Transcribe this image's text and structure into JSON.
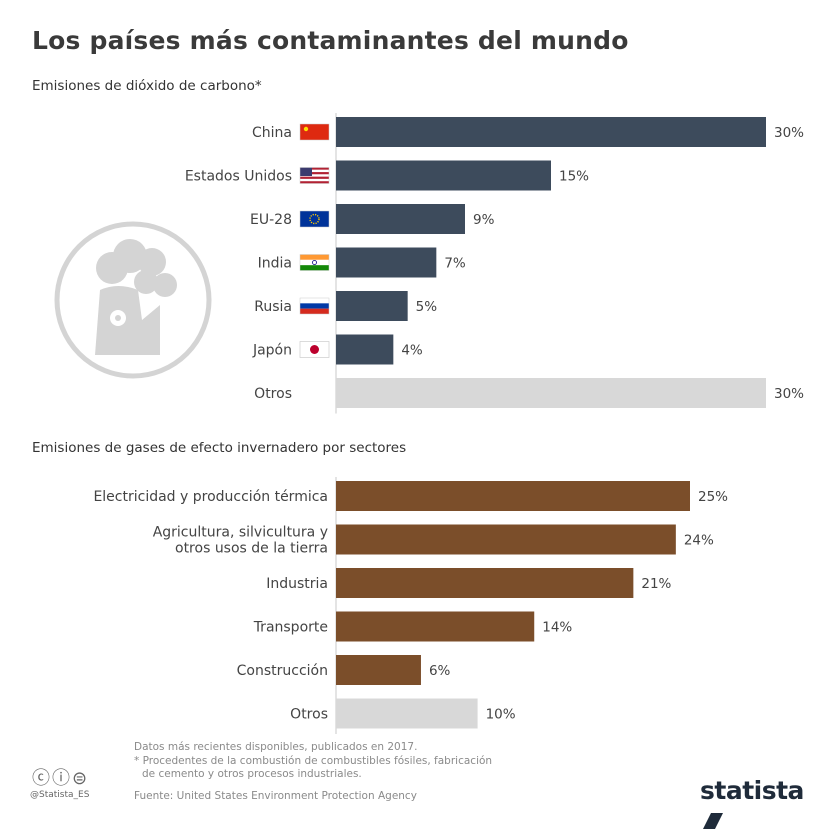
{
  "title": "Los países más contaminantes del mundo",
  "colors": {
    "co2_bar": "#3d4b5c",
    "sector_bar": "#7b4e2a",
    "other_bar": "#d8d8d8",
    "icon_gray": "#d4d4d4"
  },
  "chart_data": [
    {
      "type": "bar",
      "title": "Emisiones de dióxido de carbono*",
      "categories": [
        "China",
        "Estados Unidos",
        "EU-28",
        "India",
        "Rusia",
        "Japón",
        "Otros"
      ],
      "values": [
        30,
        15,
        9,
        7,
        5,
        4,
        30
      ],
      "value_labels": [
        "30%",
        "15%",
        "9%",
        "7%",
        "5%",
        "4%",
        "30%"
      ],
      "flags": [
        "china-flag-icon",
        "usa-flag-icon",
        "eu-flag-icon",
        "india-flag-icon",
        "russia-flag-icon",
        "japan-flag-icon",
        ""
      ],
      "unit": "%",
      "xlim": [
        0,
        30
      ]
    },
    {
      "type": "bar",
      "title": "Emisiones de gases de efecto invernadero por sectores",
      "categories": [
        "Electricidad y producción térmica",
        "Agricultura, silvicultura y otros usos de la tierra",
        "Industria",
        "Transporte",
        "Construcción",
        "Otros"
      ],
      "category_lines": [
        [
          "Electricidad y producción térmica"
        ],
        [
          "Agricultura, silvicultura y",
          "otros usos de la tierra"
        ],
        [
          "Industria"
        ],
        [
          "Transporte"
        ],
        [
          "Construcción"
        ],
        [
          "Otros"
        ]
      ],
      "values": [
        25,
        24,
        21,
        14,
        6,
        10
      ],
      "value_labels": [
        "25%",
        "24%",
        "21%",
        "14%",
        "6%",
        "10%"
      ],
      "unit": "%",
      "xlim": [
        0,
        25
      ]
    }
  ],
  "footer": {
    "line1": "Datos más recientes disponibles, publicados en 2017.",
    "line2": "* Procedentes de la combustión de combustibles fósiles, fabricación",
    "line3": "de cemento y otros procesos industriales.",
    "source": "Fuente: United States Environment Protection Agency",
    "handle": "@Statista_ES",
    "brand": "statista"
  }
}
